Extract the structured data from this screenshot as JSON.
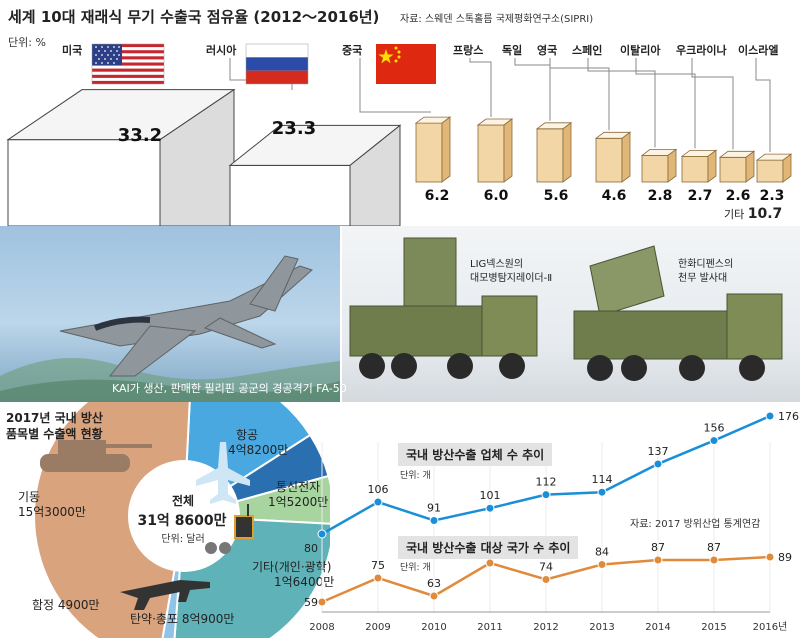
{
  "header": {
    "title": "세계 10대 재래식 무기 수출국 점유율 (2012～2016년)",
    "source": "자료: 스웨덴 스톡홀름 국제평화연구소(SIPRI)",
    "unit": "단위: %"
  },
  "colors": {
    "box_top": "#f5f5f5",
    "box_right": "#dcdcdc",
    "small_box_top": "#fdf3e3",
    "small_box_front": "#f2d6a6",
    "small_box_side": "#e0b776",
    "line_blue": "#1a8fd8",
    "line_orange": "#e08a3c",
    "donut_brown": "#d9a37e",
    "donut_blue": "#4aa8e0",
    "donut_darkblue": "#2a6fb0",
    "donut_green": "#a8d4a0",
    "donut_teal": "#5fb3b8"
  },
  "chart_data": [
    {
      "type": "bar",
      "title": "세계 10대 재래식 무기 수출국 점유율 (2012～2016년)",
      "unit": "단위: %",
      "categories": [
        "미국",
        "러시아",
        "중국",
        "프랑스",
        "독일",
        "영국",
        "스페인",
        "이탈리아",
        "우크라이나",
        "이스라엘"
      ],
      "values": [
        33.2,
        23.3,
        6.2,
        6.0,
        5.6,
        4.6,
        2.8,
        2.7,
        2.6,
        2.3
      ],
      "labels": [
        "33.2",
        "23.3",
        "6.2",
        "6.0",
        "5.6",
        "4.6",
        "2.8",
        "2.7",
        "2.6",
        "2.3"
      ],
      "other": {
        "label": "기타",
        "value": 10.7,
        "value_label": "10.7"
      },
      "flags": [
        "us-flag-icon",
        "russia-flag-icon",
        "china-flag-icon"
      ]
    },
    {
      "type": "pie",
      "title": "2017년 국내 방산 품목별 수출액 현황",
      "center_title": "전체",
      "center_value": "31억 8600만",
      "center_unit": "단위: 달러",
      "slices": [
        {
          "name": "기동",
          "value_label": "15억3000만",
          "value": 153000,
          "color": "#d9a37e"
        },
        {
          "name": "항공",
          "value_label": "4억8200만",
          "value": 48200,
          "color": "#4aa8e0"
        },
        {
          "name": "통신전자",
          "value_label": "1억5200만",
          "value": 15200,
          "color": "#2a6fb0"
        },
        {
          "name": "기타(개인·광학)",
          "value_label": "1억6400만",
          "value": 16400,
          "color": "#a8d4a0"
        },
        {
          "name": "탄약·총포",
          "value_label": "8억900만",
          "value": 80900,
          "color": "#5fb3b8"
        },
        {
          "name": "함정",
          "value_label": "4900만",
          "value": 4900,
          "color": "#8fc3e8"
        }
      ]
    },
    {
      "type": "line",
      "x": [
        "2008",
        "2009",
        "2010",
        "2011",
        "2012",
        "2013",
        "2014",
        "2015",
        "2016년"
      ],
      "series": [
        {
          "name": "국내 방산수출 업체 수 추이",
          "unit": "단위: 개",
          "values": [
            80,
            106,
            91,
            101,
            112,
            114,
            137,
            156,
            176
          ]
        },
        {
          "name": "국내 방산수출 대상 국가 수 추이",
          "unit": "단위: 개",
          "values": [
            59,
            75,
            63,
            85,
            74,
            84,
            87,
            87,
            89
          ]
        }
      ],
      "source": "자료: 2017 방위산업 통계연감"
    }
  ],
  "captions": {
    "jet": "KAI가 생산, 판매한 필리핀 공군의 경공격기 FA-50",
    "lig": [
      "LIG넥스원의",
      "대모병탐지레이더-Ⅱ"
    ],
    "hanwha": [
      "한화디펜스의",
      "천무 발사대"
    ]
  }
}
